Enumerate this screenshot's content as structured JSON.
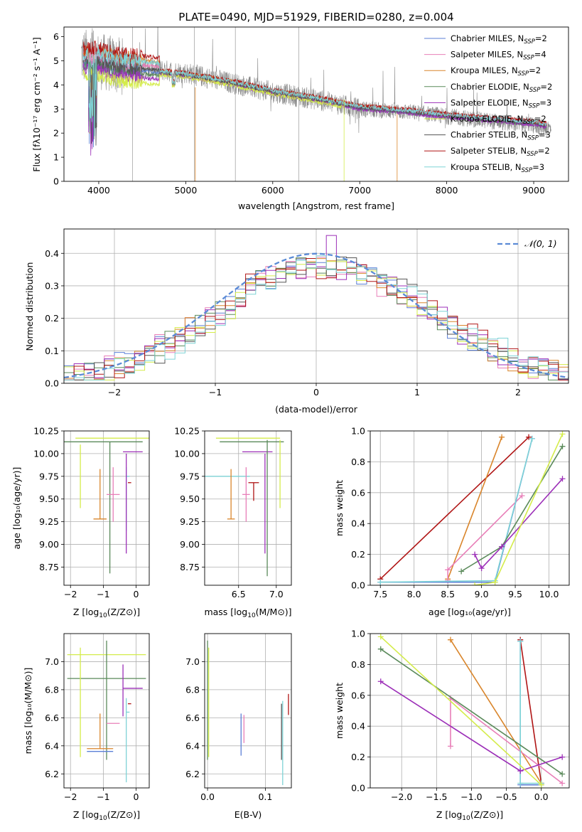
{
  "colors": {
    "chabrier_miles": "#5b7fd6",
    "salpeter_miles": "#e87fb8",
    "kroupa_miles": "#d9852b",
    "chabrier_elodie": "#5a8a5a",
    "salpeter_elodie": "#9c2fb8",
    "kroupa_elodie": "#d4ec4a",
    "chabrier_stelib": "#555555",
    "salpeter_stelib": "#b01515",
    "kroupa_stelib": "#7ed3d6",
    "normal": "#5b8bd6",
    "grid": "#b0b0b0"
  },
  "chart_data": [
    {
      "id": "spectrum",
      "type": "line",
      "title": "PLATE=0490, MJD=51929, FIBERID=0280, z=0.004",
      "xlabel": "wavelength [Angstrom, rest frame]",
      "ylabel": "Flux [fλ10⁻¹⁷ erg cm⁻² s⁻¹ A⁻¹]",
      "xlim": [
        3600,
        9400
      ],
      "ylim": [
        0,
        6.4
      ],
      "xticks": [
        4000,
        5000,
        6000,
        7000,
        8000,
        9000
      ],
      "yticks": [
        0,
        1,
        2,
        3,
        4,
        5,
        6
      ],
      "grid": false,
      "legend_position": "top-right",
      "legend": [
        {
          "key": "chabrier_miles",
          "name": "Chabrier MILES, N",
          "sub": "SSP",
          "tail": "=2"
        },
        {
          "key": "salpeter_miles",
          "name": "Salpeter MILES, N",
          "sub": "SSP",
          "tail": "=4"
        },
        {
          "key": "kroupa_miles",
          "name": "Kroupa MILES, N",
          "sub": "SSP",
          "tail": "=2"
        },
        {
          "key": "chabrier_elodie",
          "name": "Chabrier ELODIE, N",
          "sub": "SSP",
          "tail": "=2"
        },
        {
          "key": "salpeter_elodie",
          "name": "Salpeter ELODIE, N",
          "sub": "SSP",
          "tail": "=3"
        },
        {
          "key": "kroupa_elodie",
          "name": "Kroupa ELODIE, N",
          "sub": "SSP",
          "tail": "=2"
        },
        {
          "key": "chabrier_stelib",
          "name": "Chabrier STELIB, N",
          "sub": "SSP",
          "tail": "=3"
        },
        {
          "key": "salpeter_stelib",
          "name": "Salpeter STELIB, N",
          "sub": "SSP",
          "tail": "=2"
        },
        {
          "key": "kroupa_stelib",
          "name": "Kroupa STELIB, N",
          "sub": "SSP",
          "tail": "=3"
        }
      ],
      "observed_envelope": {
        "x": [
          3800,
          4000,
          4200,
          4500,
          5000,
          5500,
          6000,
          6500,
          7000,
          7500,
          8000,
          8500,
          9000,
          9200
        ],
        "y": [
          5.2,
          5.0,
          4.8,
          4.7,
          4.5,
          4.1,
          3.7,
          3.4,
          3.0,
          2.9,
          2.7,
          2.5,
          2.3,
          2.2
        ]
      },
      "model_envelope": {
        "x": [
          3820,
          4000,
          4200,
          4500,
          5000,
          5500,
          6000,
          6500,
          7000,
          7500,
          8000,
          8500,
          9000,
          9150
        ],
        "y": [
          4.9,
          4.95,
          4.7,
          4.6,
          4.4,
          4.1,
          3.7,
          3.4,
          3.05,
          2.9,
          2.7,
          2.55,
          2.4,
          2.3
        ]
      }
    },
    {
      "id": "residuals",
      "type": "histogram",
      "xlabel": "(data-model)/error",
      "ylabel": "Normed distribution",
      "xlim": [
        -2.5,
        2.5
      ],
      "ylim": [
        0,
        0.475
      ],
      "xticks": [
        -2,
        -1,
        0,
        1,
        2
      ],
      "yticks": [
        0.0,
        0.1,
        0.2,
        0.3,
        0.4
      ],
      "grid": true,
      "legend_position": "top-right",
      "normal_label": "𝒩(0, 1)",
      "bin_edges_range": [
        -2.5,
        2.5
      ],
      "n_bins": 50
    },
    {
      "id": "age_vs_Z",
      "type": "errorbar",
      "xlabel_main": "Z [log",
      "xlabel_sub": "10",
      "xlabel_tail": "(Z/Z⊙)]",
      "ylabel": "age  [log₁₀(age/yr)]",
      "xlim": [
        -2.2,
        0.4
      ],
      "ylim": [
        8.55,
        10.25
      ],
      "xticks": [
        -2,
        -1,
        0
      ],
      "yticks": [
        8.75,
        9.0,
        9.25,
        9.5,
        9.75,
        10.0,
        10.25
      ],
      "grid": true,
      "points": [
        {
          "key": "kroupa_elodie",
          "x": 0.15,
          "y": 10.17,
          "xerr": [
            2.0,
            0.4
          ],
          "yerr": [
            0.0,
            0.0
          ]
        },
        {
          "key": "chabrier_elodie",
          "x": -0.8,
          "y": 10.13,
          "xerr": [
            1.4,
            1.0
          ],
          "yerr": [
            1.45,
            0.0
          ]
        },
        {
          "key": "salpeter_elodie",
          "x": -0.4,
          "y": 10.02,
          "xerr": [
            0.0,
            0.6
          ],
          "yerr": [
            0.0,
            0.0
          ]
        },
        {
          "key": "kroupa_stelib",
          "x": -0.3,
          "y": 9.75,
          "xerr": [
            0.0,
            0.1
          ],
          "yerr": [
            0.6,
            0.1
          ]
        },
        {
          "key": "salpeter_miles",
          "x": -0.7,
          "y": 9.55,
          "xerr": [
            0.2,
            0.2
          ],
          "yerr": [
            0.3,
            0.3
          ]
        },
        {
          "key": "salpeter_stelib",
          "x": -0.2,
          "y": 9.68,
          "xerr": [
            0.05,
            0.05
          ],
          "yerr": [
            0.0,
            0.0
          ]
        },
        {
          "key": "kroupa_miles",
          "x": -1.1,
          "y": 9.28,
          "xerr": [
            0.2,
            0.2
          ],
          "yerr": [
            0.0,
            0.55
          ]
        },
        {
          "key": "salpeter_elodie",
          "x": -0.3,
          "y": 9.3,
          "xerr": [
            0.0,
            0.0
          ],
          "yerr": [
            0.4,
            0.7
          ]
        },
        {
          "key": "kroupa_elodie",
          "x": -1.7,
          "y": 9.6,
          "xerr": [
            0.0,
            0.0
          ],
          "yerr": [
            0.2,
            0.5
          ]
        }
      ]
    },
    {
      "id": "age_vs_mass",
      "type": "errorbar",
      "xlabel_main": "mass [log",
      "xlabel_sub": "10",
      "xlabel_tail": "(M/M⊙)]",
      "ylabel": "",
      "xlim": [
        6.05,
        7.2
      ],
      "ylim": [
        8.55,
        10.25
      ],
      "xticks": [
        6.5,
        7.0
      ],
      "yticks": [
        8.75,
        9.0,
        9.25,
        9.5,
        9.75,
        10.0,
        10.25
      ],
      "grid": true,
      "points": [
        {
          "key": "kroupa_elodie",
          "x": 6.55,
          "y": 10.17,
          "xerr": [
            0.35,
            0.5
          ],
          "yerr": [
            0.0,
            0.0
          ]
        },
        {
          "key": "chabrier_elodie",
          "x": 6.6,
          "y": 10.13,
          "xerr": [
            0.35,
            0.5
          ],
          "yerr": [
            0.0,
            0.0
          ]
        },
        {
          "key": "salpeter_elodie",
          "x": 6.75,
          "y": 10.02,
          "xerr": [
            0.2,
            0.2
          ],
          "yerr": [
            0.0,
            0.0
          ]
        },
        {
          "key": "kroupa_stelib",
          "x": 6.3,
          "y": 9.75,
          "xerr": [
            0.3,
            0.35
          ],
          "yerr": [
            0.0,
            0.0
          ]
        },
        {
          "key": "salpeter_miles",
          "x": 6.6,
          "y": 9.55,
          "xerr": [
            0.05,
            0.05
          ],
          "yerr": [
            0.3,
            0.3
          ]
        },
        {
          "key": "salpeter_stelib",
          "x": 6.7,
          "y": 9.68,
          "xerr": [
            0.07,
            0.07
          ],
          "yerr": [
            0.2,
            0.0
          ]
        },
        {
          "key": "kroupa_miles",
          "x": 6.4,
          "y": 9.28,
          "xerr": [
            0.05,
            0.05
          ],
          "yerr": [
            0.0,
            0.55
          ]
        },
        {
          "key": "chabrier_elodie",
          "x": 6.88,
          "y": 9.4,
          "xerr": [
            0.0,
            0.0
          ],
          "yerr": [
            0.75,
            0.75
          ]
        },
        {
          "key": "kroupa_elodie",
          "x": 7.05,
          "y": 9.6,
          "xerr": [
            0.0,
            0.0
          ],
          "yerr": [
            0.2,
            0.55
          ]
        },
        {
          "key": "salpeter_elodie",
          "x": 6.85,
          "y": 9.3,
          "xerr": [
            0.0,
            0.0
          ],
          "yerr": [
            0.4,
            0.7
          ]
        }
      ]
    },
    {
      "id": "mass_weight_vs_age",
      "type": "line",
      "xlabel": "age  [log₁₀(age/yr)]",
      "ylabel": "mass weight",
      "xlim": [
        7.35,
        10.3
      ],
      "ylim": [
        0,
        1.0
      ],
      "xticks": [
        7.5,
        8.0,
        8.5,
        9.0,
        9.5,
        10.0
      ],
      "yticks": [
        0.0,
        0.2,
        0.4,
        0.6,
        0.8,
        1.0
      ],
      "grid": true,
      "series": [
        {
          "key": "salpeter_stelib",
          "x": [
            7.5,
            9.7
          ],
          "y": [
            0.04,
            0.96
          ]
        },
        {
          "key": "kroupa_miles",
          "x": [
            8.5,
            9.3
          ],
          "y": [
            0.04,
            0.96
          ]
        },
        {
          "key": "salpeter_miles",
          "x": [
            8.5,
            8.5,
            9.6
          ],
          "y": [
            0.03,
            0.1,
            0.58
          ]
        },
        {
          "key": "chabrier_miles",
          "x": [
            7.5,
            9.2,
            9.75
          ],
          "y": [
            0.02,
            0.02,
            0.95
          ]
        },
        {
          "key": "kroupa_stelib",
          "x": [
            7.5,
            9.2,
            9.75
          ],
          "y": [
            0.02,
            0.03,
            0.95
          ]
        },
        {
          "key": "chabrier_elodie",
          "x": [
            8.7,
            9.3,
            10.2
          ],
          "y": [
            0.09,
            0.25,
            0.9
          ]
        },
        {
          "key": "salpeter_elodie",
          "x": [
            8.9,
            9.0,
            9.3,
            10.2
          ],
          "y": [
            0.2,
            0.11,
            0.25,
            0.69
          ]
        },
        {
          "key": "kroupa_elodie",
          "x": [
            8.9,
            9.2,
            10.2
          ],
          "y": [
            0.0,
            0.02,
            0.98
          ]
        }
      ]
    },
    {
      "id": "mass_vs_Z",
      "type": "errorbar",
      "xlabel_main": "Z [log",
      "xlabel_sub": "10",
      "xlabel_tail": "(Z/Z⊙)]",
      "ylabel": "mass [log₁₀(M/M⊙)]",
      "xlim": [
        -2.2,
        0.4
      ],
      "ylim": [
        6.1,
        7.2
      ],
      "xticks": [
        -2,
        -1,
        0
      ],
      "yticks": [
        6.2,
        6.4,
        6.6,
        6.8,
        7.0
      ],
      "grid": true,
      "points": [
        {
          "key": "kroupa_elodie",
          "x": -0.6,
          "y": 7.05,
          "xerr": [
            1.5,
            0.9
          ],
          "yerr": [
            0.0,
            0.0
          ]
        },
        {
          "key": "chabrier_elodie",
          "x": -0.9,
          "y": 6.88,
          "xerr": [
            1.2,
            1.2
          ],
          "yerr": [
            0.58,
            0.27
          ]
        },
        {
          "key": "salpeter_elodie",
          "x": -0.4,
          "y": 6.81,
          "xerr": [
            0.0,
            0.6
          ],
          "yerr": [
            0.2,
            0.17
          ]
        },
        {
          "key": "kroupa_stelib",
          "x": -0.3,
          "y": 6.64,
          "xerr": [
            0.0,
            0.1
          ],
          "yerr": [
            0.5,
            0.1
          ]
        },
        {
          "key": "salpeter_miles",
          "x": -0.7,
          "y": 6.56,
          "xerr": [
            0.2,
            0.2
          ],
          "yerr": [
            0.0,
            0.0
          ]
        },
        {
          "key": "salpeter_stelib",
          "x": -0.2,
          "y": 6.7,
          "xerr": [
            0.05,
            0.05
          ],
          "yerr": [
            0.0,
            0.0
          ]
        },
        {
          "key": "kroupa_miles",
          "x": -1.1,
          "y": 6.38,
          "xerr": [
            0.4,
            0.4
          ],
          "yerr": [
            0.0,
            0.25
          ]
        },
        {
          "key": "chabrier_miles",
          "x": -1.1,
          "y": 6.36,
          "xerr": [
            0.4,
            0.4
          ],
          "yerr": [
            0.0,
            0.0
          ]
        },
        {
          "key": "kroupa_elodie",
          "x": -1.7,
          "y": 6.7,
          "xerr": [
            0.0,
            0.0
          ],
          "yerr": [
            0.38,
            0.4
          ]
        }
      ]
    },
    {
      "id": "mass_vs_ebv",
      "type": "errorbar",
      "xlabel": "E(B-V)",
      "ylabel": "",
      "xlim": [
        -0.005,
        0.145
      ],
      "ylim": [
        6.1,
        7.2
      ],
      "xticks": [
        0.0,
        0.1
      ],
      "yticks": [
        6.2,
        6.4,
        6.6,
        6.8,
        7.0
      ],
      "grid": true,
      "points": [
        {
          "key": "kroupa_elodie",
          "x": 0.002,
          "y": 6.7,
          "xerr": [
            0.0,
            0.0
          ],
          "yerr": [
            0.38,
            0.4
          ]
        },
        {
          "key": "chabrier_elodie",
          "x": 0.0,
          "y": 6.8,
          "xerr": [
            0.0,
            0.0
          ],
          "yerr": [
            0.5,
            0.35
          ]
        },
        {
          "key": "chabrier_miles",
          "x": 0.058,
          "y": 6.48,
          "xerr": [
            0.0,
            0.0
          ],
          "yerr": [
            0.15,
            0.15
          ]
        },
        {
          "key": "salpeter_miles",
          "x": 0.063,
          "y": 6.52,
          "xerr": [
            0.0,
            0.0
          ],
          "yerr": [
            0.1,
            0.1
          ]
        },
        {
          "key": "kroupa_stelib",
          "x": 0.13,
          "y": 6.42,
          "xerr": [
            0.0,
            0.0
          ],
          "yerr": [
            0.3,
            0.3
          ]
        },
        {
          "key": "salpeter_stelib",
          "x": 0.14,
          "y": 6.7,
          "xerr": [
            0.0,
            0.0
          ],
          "yerr": [
            0.08,
            0.07
          ]
        },
        {
          "key": "chabrier_stelib",
          "x": 0.128,
          "y": 6.5,
          "xerr": [
            0.0,
            0.0
          ],
          "yerr": [
            0.2,
            0.2
          ]
        }
      ]
    },
    {
      "id": "mass_weight_vs_Z",
      "type": "line",
      "xlabel_main": "Z [log",
      "xlabel_sub": "10",
      "xlabel_tail": "(Z/Z⊙)]",
      "ylabel": "mass weight",
      "xlim": [
        -2.45,
        0.4
      ],
      "ylim": [
        0,
        1.0
      ],
      "xticks": [
        -2.0,
        -1.5,
        -1.0,
        -0.5,
        0.0
      ],
      "yticks": [
        0.0,
        0.2,
        0.4,
        0.6,
        0.8,
        1.0
      ],
      "grid": true,
      "series": [
        {
          "key": "salpeter_stelib",
          "x": [
            -0.3,
            0.0
          ],
          "y": [
            0.96,
            0.03
          ]
        },
        {
          "key": "kroupa_miles",
          "x": [
            -1.3,
            0.0
          ],
          "y": [
            0.96,
            0.03
          ]
        },
        {
          "key": "salpeter_miles",
          "x": [
            -1.3,
            -1.3,
            0.3
          ],
          "y": [
            0.27,
            0.58,
            0.03
          ]
        },
        {
          "key": "chabrier_miles",
          "x": [
            -0.3,
            -0.3,
            0.0
          ],
          "y": [
            0.95,
            0.02,
            0.02
          ]
        },
        {
          "key": "kroupa_stelib",
          "x": [
            -0.3,
            -0.3,
            0.0
          ],
          "y": [
            0.95,
            0.03,
            0.03
          ]
        },
        {
          "key": "chabrier_elodie",
          "x": [
            -2.3,
            0.3
          ],
          "y": [
            0.9,
            0.09
          ]
        },
        {
          "key": "salpeter_elodie",
          "x": [
            -2.3,
            -0.3,
            0.3
          ],
          "y": [
            0.69,
            0.11,
            0.2
          ]
        },
        {
          "key": "kroupa_elodie",
          "x": [
            -2.3,
            0.0
          ],
          "y": [
            0.98,
            0.02
          ]
        }
      ]
    }
  ]
}
